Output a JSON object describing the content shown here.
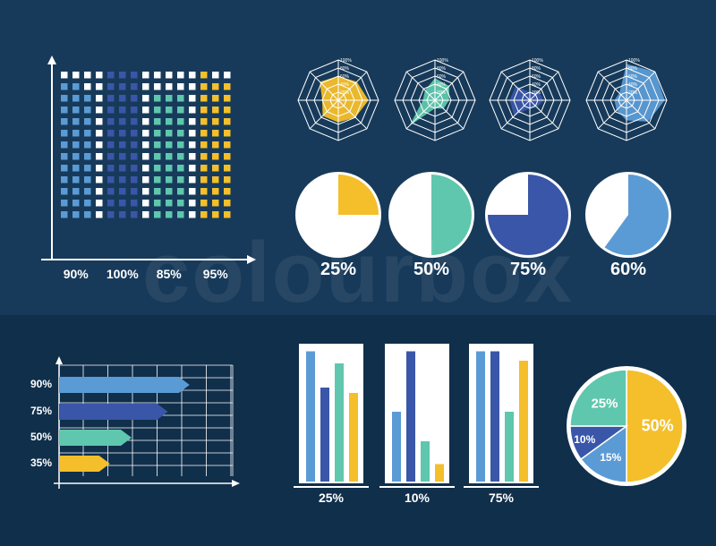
{
  "colors": {
    "bg_top": "#173a5a",
    "bg_bottom": "#102f4b",
    "light_blue": "#5b9bd5",
    "dark_blue": "#3a56a8",
    "mint": "#5fc7ad",
    "yellow": "#f4bf2a",
    "white": "#ffffff"
  },
  "watermark": "colourbox",
  "chart_data": [
    {
      "type": "waffle",
      "categories": [
        "90%",
        "100%",
        "85%",
        "95%"
      ],
      "values": [
        90,
        100,
        85,
        95
      ],
      "colors": [
        "#5b9bd5",
        "#3a56a8",
        "#5fc7ad",
        "#f4bf2a"
      ],
      "rows": 13,
      "columns_per_group": 3
    },
    {
      "type": "radar",
      "axis_labels": [
        "100%",
        "80%",
        "60%",
        "40%",
        "20%"
      ],
      "charts": [
        {
          "color": "#f4bf2a",
          "values": [
            0.6,
            0.65,
            0.75,
            0.6,
            0.55,
            0.55,
            0.4,
            0.65
          ]
        },
        {
          "color": "#5fc7ad",
          "values": [
            0.55,
            0.5,
            0.35,
            0.3,
            0.2,
            0.9,
            0.3,
            0.35
          ]
        },
        {
          "color": "#3a56a8",
          "values": [
            0.2,
            0.3,
            0.35,
            0.25,
            0.2,
            0.55,
            0.5,
            0.5
          ]
        },
        {
          "color": "#5b9bd5",
          "values": [
            0.9,
            1.0,
            0.95,
            0.75,
            0.5,
            0.35,
            0.3,
            0.25
          ]
        }
      ]
    },
    {
      "type": "pie",
      "items": [
        {
          "label": "25%",
          "value": 25,
          "color": "#f4bf2a"
        },
        {
          "label": "50%",
          "value": 50,
          "color": "#5fc7ad"
        },
        {
          "label": "75%",
          "value": 75,
          "color": "#3a56a8"
        },
        {
          "label": "60%",
          "value": 60,
          "color": "#5b9bd5"
        }
      ]
    },
    {
      "type": "bar",
      "orientation": "horizontal",
      "categories": [
        "90%",
        "75%",
        "50%",
        "35%"
      ],
      "values": [
        90,
        75,
        50,
        35
      ],
      "colors": [
        "#5b9bd5",
        "#3a56a8",
        "#5fc7ad",
        "#f4bf2a"
      ],
      "xlim": [
        0,
        100
      ]
    },
    {
      "type": "bar",
      "groups": [
        {
          "label": "25%",
          "values": [
            0.97,
            0.7,
            0.88,
            0.66
          ]
        },
        {
          "label": "10%",
          "values": [
            0.52,
            0.97,
            0.3,
            0.13
          ]
        },
        {
          "label": "75%",
          "values": [
            0.97,
            0.97,
            0.52,
            0.9
          ]
        }
      ],
      "series_colors": [
        "#5b9bd5",
        "#3a56a8",
        "#5fc7ad",
        "#f4bf2a"
      ]
    },
    {
      "type": "pie",
      "slices": [
        {
          "label": "50%",
          "value": 50,
          "color": "#f4bf2a"
        },
        {
          "label": "15%",
          "value": 15,
          "color": "#5b9bd5"
        },
        {
          "label": "10%",
          "value": 10,
          "color": "#3a56a8"
        },
        {
          "label": "25%",
          "value": 25,
          "color": "#5fc7ad"
        }
      ]
    }
  ]
}
